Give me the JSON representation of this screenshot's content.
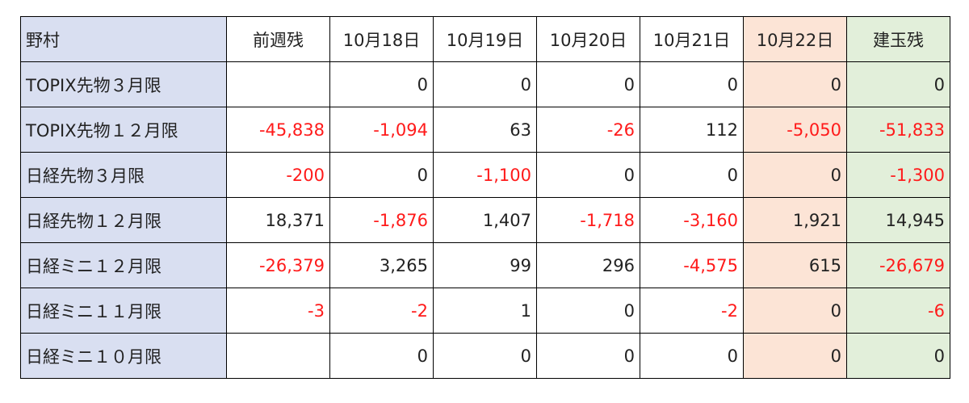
{
  "table": {
    "header": [
      "野村",
      "前週残",
      "10月18日",
      "10月19日",
      "10月20日",
      "10月21日",
      "10月22日",
      "建玉残"
    ],
    "rows": [
      [
        "TOPIX先物３月限",
        null,
        "0",
        "0",
        "0",
        "0",
        "0",
        "0"
      ],
      [
        "TOPIX先物１２月限",
        "-45,838",
        "-1,094",
        "63",
        "-26",
        "112",
        "-5,050",
        "-51,833"
      ],
      [
        "日経先物３月限",
        "-200",
        "0",
        "-1,100",
        "0",
        "0",
        "0",
        "-1,300"
      ],
      [
        "日経先物１２月限",
        "18,371",
        "-1,876",
        "1,407",
        "-1,718",
        "-3,160",
        "1,921",
        "14,945"
      ],
      [
        "日経ミニ１２月限",
        "-26,379",
        "3,265",
        "99",
        "296",
        "-4,575",
        "615",
        "-26,679"
      ],
      [
        "日経ミニ１１月限",
        "-3",
        "-2",
        "1",
        "0",
        "-2",
        "0",
        "-6"
      ],
      [
        "日経ミニ１０月限",
        null,
        "0",
        "0",
        "0",
        "0",
        "0",
        "0"
      ]
    ]
  }
}
